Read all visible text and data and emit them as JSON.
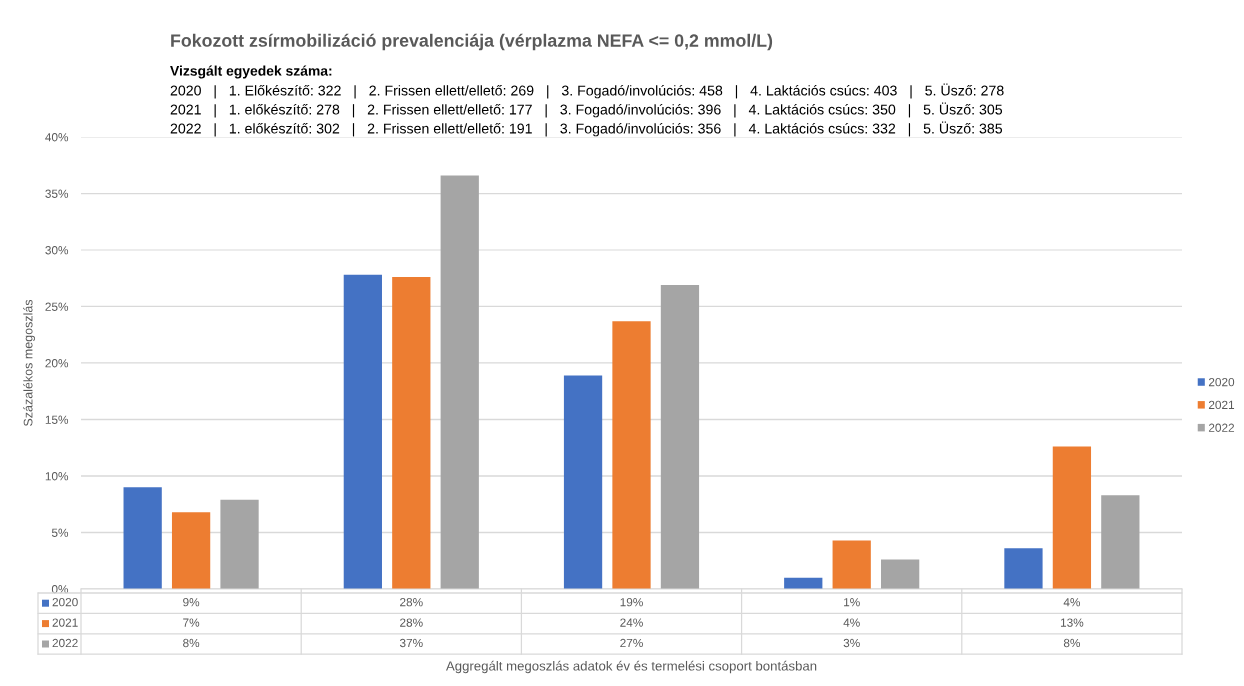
{
  "chart_data": {
    "type": "bar",
    "title": "Fokozott zsírmobilizáció prevalenciája (vérplazma NEFA <= 0,2 mmol/L)",
    "subtitle": "Vizsgált egyedek száma:",
    "annotations": [
      "2020   |   1. Előkészítő: 322   |   2. Frissen ellett/ellető: 269   |   3. Fogadó/involúciós: 458   |   4. Laktációs csúcs: 403   |   5. Üsző: 278",
      "2021   |   1. előkészítő: 278   |   2. Frissen ellett/ellető: 177   |   3. Fogadó/involúciós: 396   |   4. Laktációs csúcs: 350   |   5. Üsző: 305",
      "2022   |   1. előkészítő: 302   |   2. Frissen ellett/ellető: 191   |   3. Fogadó/involúciós: 356   |   4. Laktációs csúcs: 332   |   5. Üsző: 385",
      "Aggregált megoszlás adatok év és termelési csoport bontásban"
    ],
    "ylabel": "Százalékos megoszlás",
    "categories": [
      null,
      null,
      null,
      null,
      null
    ],
    "series": [
      {
        "name": "2020",
        "color": "#4472c4",
        "values": [
          9.0,
          27.8,
          18.9,
          1.0,
          3.6
        ],
        "value_labels": [
          "9%",
          "28%",
          "19%",
          "1%",
          "4%"
        ]
      },
      {
        "name": "2021",
        "color": "#ed7d31",
        "values": [
          6.8,
          27.6,
          23.7,
          4.3,
          12.6
        ],
        "value_labels": [
          "7%",
          "28%",
          "24%",
          "4%",
          "13%"
        ]
      },
      {
        "name": "2022",
        "color": "#a5a5a5",
        "values": [
          7.9,
          36.6,
          26.9,
          2.6,
          8.3
        ],
        "value_labels": [
          "8%",
          "37%",
          "27%",
          "3%",
          "8%"
        ]
      }
    ],
    "ylim": [
      0,
      40
    ],
    "yticks": [
      {
        "value": 0,
        "label": "0%"
      },
      {
        "value": 5,
        "label": "5%"
      },
      {
        "value": 10,
        "label": "10%"
      },
      {
        "value": 15,
        "label": "15%"
      },
      {
        "value": 20,
        "label": "20%"
      },
      {
        "value": 25,
        "label": "25%"
      },
      {
        "value": 30,
        "label": "30%"
      },
      {
        "value": 35,
        "label": "35%"
      },
      {
        "value": 40,
        "label": "40%"
      }
    ],
    "grid": "y",
    "legend": "right"
  }
}
